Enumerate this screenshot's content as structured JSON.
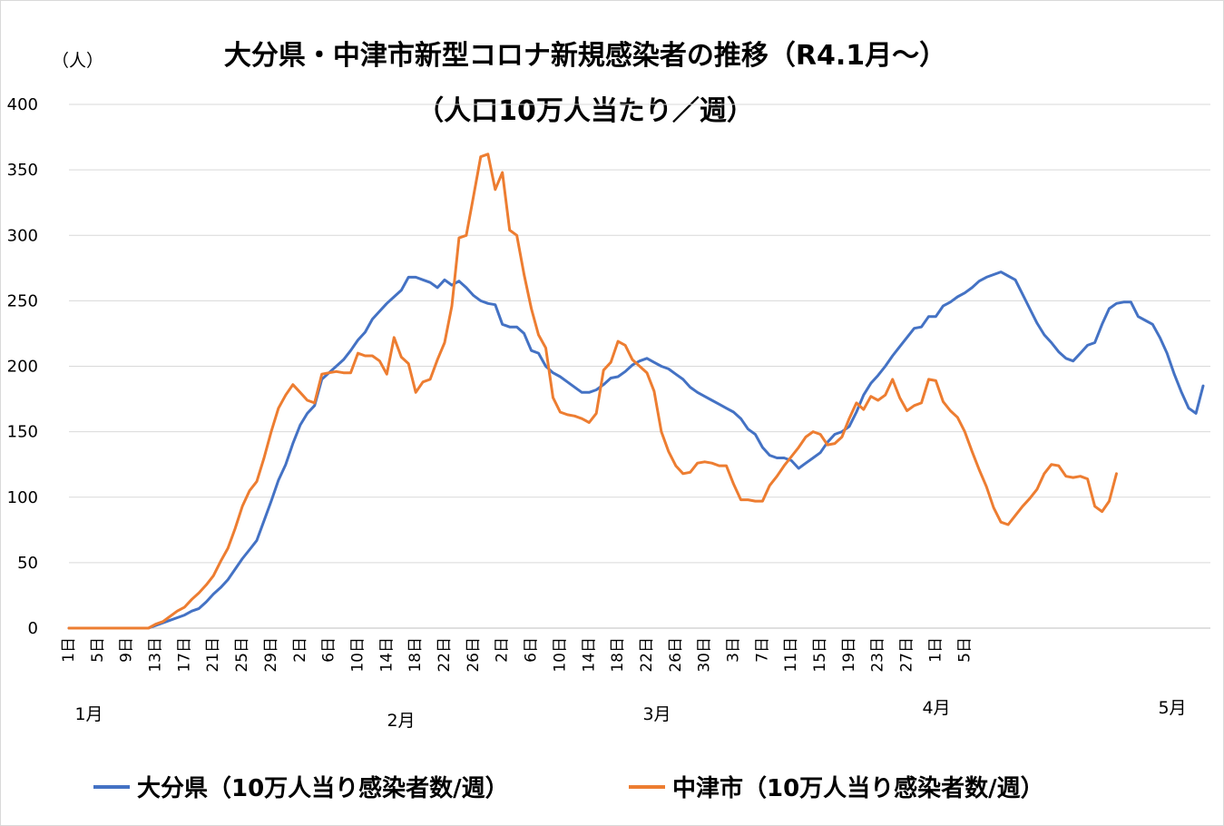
{
  "chart_data": {
    "type": "line",
    "title": "大分県・中津市新型コロナ新規感染者の推移（R4.1月～）",
    "subtitle": "（人口10万人当たり／週）",
    "ylabel": "（人）",
    "xlabel": "",
    "ylim": [
      0,
      400
    ],
    "yticks": [
      0,
      50,
      100,
      150,
      200,
      250,
      300,
      350,
      400
    ],
    "grid": true,
    "legend": "bottom",
    "x_tick_labels": [
      "1日",
      "5日",
      "9日",
      "13日",
      "17日",
      "21日",
      "25日",
      "29日",
      "2日",
      "6日",
      "10日",
      "14日",
      "18日",
      "22日",
      "26日",
      "2日",
      "6日",
      "10日",
      "14日",
      "18日",
      "22日",
      "26日",
      "30日",
      "3日",
      "7日",
      "11日",
      "15日",
      "19日",
      "23日",
      "27日",
      "1日",
      "5日"
    ],
    "month_labels": [
      "1月",
      "2月",
      "3月",
      "4月",
      "5月"
    ],
    "series": [
      {
        "name": "大分県（10万人当り感染者数/週）",
        "color": "#4472c4",
        "values": [
          0,
          0,
          0,
          0,
          0,
          0,
          0,
          0,
          0,
          0,
          0,
          0,
          2,
          4,
          6,
          8,
          10,
          13,
          15,
          20,
          26,
          31,
          37,
          45,
          53,
          60,
          67,
          82,
          97,
          113,
          125,
          141,
          155,
          164,
          170,
          190,
          195,
          200,
          205,
          212,
          220,
          226,
          236,
          242,
          248,
          253,
          258,
          268,
          268,
          266,
          264,
          260,
          266,
          262,
          265,
          260,
          254,
          250,
          248,
          247,
          232,
          230,
          230,
          225,
          212,
          210,
          200,
          195,
          192,
          188,
          184,
          180,
          180,
          182,
          186,
          191,
          192,
          196,
          201,
          204,
          206,
          203,
          200,
          198,
          194,
          190,
          184,
          180,
          177,
          174,
          171,
          168,
          165,
          160,
          152,
          148,
          138,
          132,
          130,
          130,
          128,
          122,
          126,
          130,
          134,
          142,
          148,
          150,
          154,
          165,
          178,
          187,
          193,
          200,
          208,
          215,
          222,
          229,
          230,
          238,
          238,
          246,
          249,
          253,
          256,
          260,
          265,
          268,
          270,
          272,
          269,
          266,
          255,
          244,
          233,
          224,
          218,
          211,
          206,
          204,
          210,
          216,
          218,
          232,
          244,
          248,
          249,
          249,
          238,
          235,
          232,
          222,
          210,
          194,
          180,
          168,
          164,
          185
        ]
      },
      {
        "name": "中津市（10万人当り感染者数/週）",
        "color": "#ed7d31",
        "values": [
          0,
          0,
          0,
          0,
          0,
          0,
          0,
          0,
          0,
          0,
          0,
          0,
          3,
          5,
          9,
          13,
          16,
          22,
          27,
          33,
          40,
          51,
          61,
          76,
          93,
          105,
          112,
          130,
          150,
          168,
          178,
          186,
          180,
          174,
          172,
          194,
          195,
          196,
          195,
          195,
          210,
          208,
          208,
          204,
          194,
          222,
          207,
          202,
          180,
          188,
          190,
          205,
          218,
          246,
          298,
          300,
          330,
          360,
          362,
          335,
          348,
          304,
          300,
          270,
          244,
          224,
          214,
          176,
          165,
          163,
          162,
          160,
          157,
          164,
          197,
          203,
          219,
          216,
          205,
          200,
          195,
          181,
          150,
          135,
          124,
          118,
          119,
          126,
          127,
          126,
          124,
          124,
          110,
          98,
          98,
          97,
          97,
          109,
          116,
          124,
          131,
          138,
          146,
          150,
          148,
          140,
          141,
          146,
          160,
          172,
          167,
          177,
          174,
          178,
          190,
          176,
          166,
          170,
          172,
          190,
          189,
          173,
          166,
          161,
          150,
          135,
          121,
          108,
          92,
          81,
          79,
          86,
          93,
          99,
          106,
          118,
          125,
          124,
          116,
          115,
          116,
          114,
          93,
          89,
          97,
          118
        ]
      }
    ]
  },
  "title_line1": "大分県・中津市新型コロナ新規感染者の推移（R4.1月～）",
  "title_line2": "（人口10万人当たり／週）",
  "y_unit": "（人）",
  "legend": {
    "s1": "大分県（10万人当り感染者数/週）",
    "s2": "中津市（10万人当り感染者数/週）"
  }
}
